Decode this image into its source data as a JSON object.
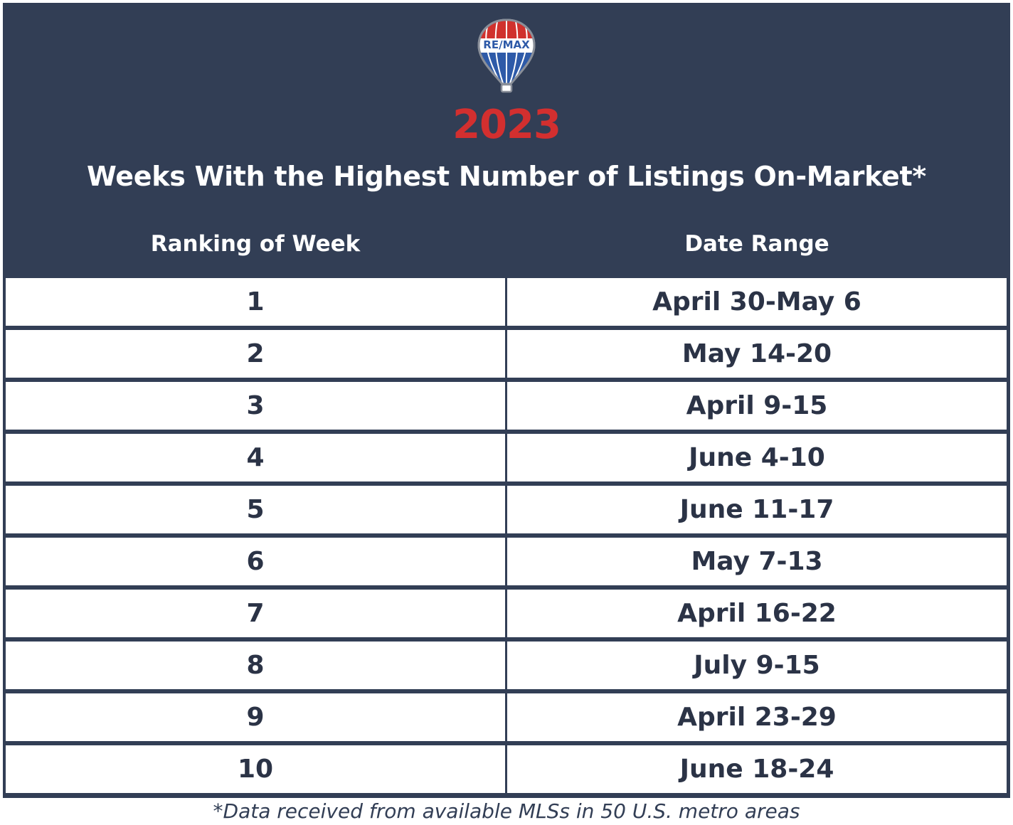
{
  "logo": {
    "text": "RE/MAX",
    "icon": "hot-air-balloon-logo"
  },
  "header": {
    "year": "2023",
    "title": "Weeks With the Highest Number of Listings On-Market*"
  },
  "table": {
    "columns": [
      "Ranking of Week",
      "Date Range"
    ],
    "rows": [
      {
        "rank": "1",
        "date": "April 30-May 6"
      },
      {
        "rank": "2",
        "date": "May 14-20"
      },
      {
        "rank": "3",
        "date": "April 9-15"
      },
      {
        "rank": "4",
        "date": "June 4-10"
      },
      {
        "rank": "5",
        "date": "June 11-17"
      },
      {
        "rank": "6",
        "date": "May 7-13"
      },
      {
        "rank": "7",
        "date": "April 16-22"
      },
      {
        "rank": "8",
        "date": "July 9-15"
      },
      {
        "rank": "9",
        "date": "April 23-29"
      },
      {
        "rank": "10",
        "date": "June 18-24"
      }
    ]
  },
  "footnote": "*Data received from available MLSs in 50 U.S. metro areas",
  "colors": {
    "navy": "#323e55",
    "red": "#d32f2f",
    "blue": "#2e5aa8",
    "white": "#ffffff",
    "cell_text": "#2b3346"
  }
}
